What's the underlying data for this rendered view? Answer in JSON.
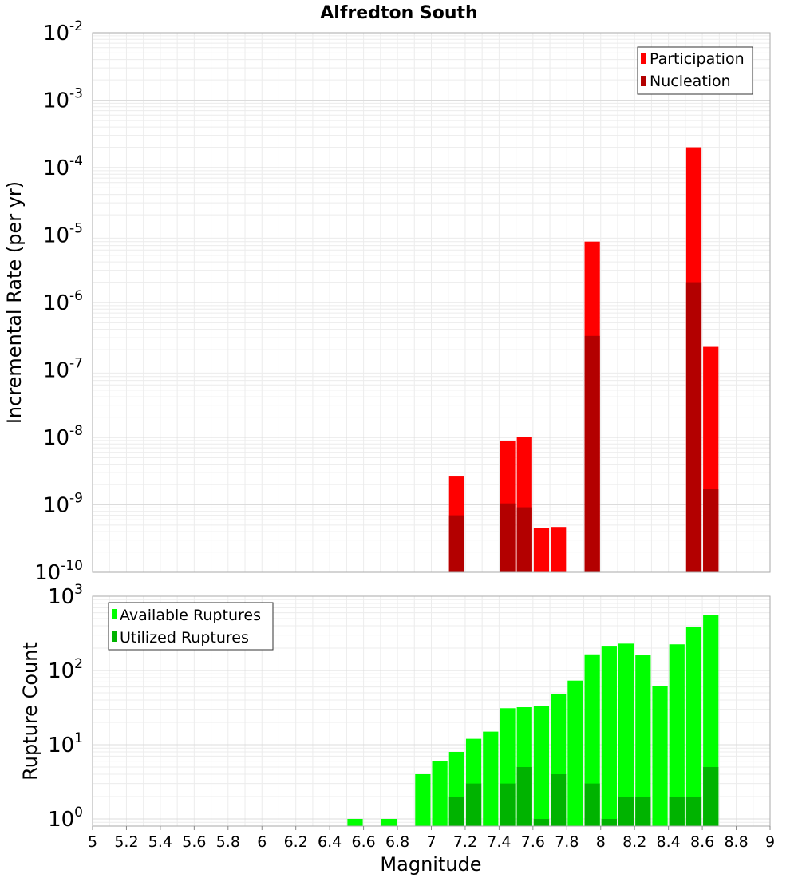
{
  "chart_data": [
    {
      "type": "bar",
      "title": "Alfredton South",
      "ylabel": "Incremental Rate (per yr)",
      "y_scale": "log",
      "ylim": [
        1e-10,
        0.01
      ],
      "y_ticks": [
        {
          "base": "10",
          "exp": "-2"
        },
        {
          "base": "10",
          "exp": "-3"
        },
        {
          "base": "10",
          "exp": "-4"
        },
        {
          "base": "10",
          "exp": "-5"
        },
        {
          "base": "10",
          "exp": "-6"
        },
        {
          "base": "10",
          "exp": "-7"
        },
        {
          "base": "10",
          "exp": "-8"
        },
        {
          "base": "10",
          "exp": "-9"
        },
        {
          "base": "10",
          "exp": "-10"
        }
      ],
      "legend_position": "top-right",
      "series": [
        {
          "name": "Participation",
          "color": "#ff0000",
          "points": [
            {
              "x": 7.1,
              "y": 2.7e-09
            },
            {
              "x": 7.4,
              "y": 8.8e-09
            },
            {
              "x": 7.5,
              "y": 1e-08
            },
            {
              "x": 7.6,
              "y": 4.5e-10
            },
            {
              "x": 7.7,
              "y": 4.7e-10
            },
            {
              "x": 7.9,
              "y": 8e-06
            },
            {
              "x": 8.5,
              "y": 0.0002
            },
            {
              "x": 8.6,
              "y": 2.2e-07
            }
          ]
        },
        {
          "name": "Nucleation",
          "color": "#b30000",
          "points": [
            {
              "x": 7.1,
              "y": 7e-10
            },
            {
              "x": 7.4,
              "y": 1.05e-09
            },
            {
              "x": 7.5,
              "y": 9.2e-10
            },
            {
              "x": 7.9,
              "y": 3.2e-07
            },
            {
              "x": 8.5,
              "y": 2e-06
            },
            {
              "x": 8.6,
              "y": 1.7e-09
            }
          ]
        }
      ]
    },
    {
      "type": "bar",
      "xlabel": "Magnitude",
      "ylabel": "Rupture Count",
      "y_scale": "log",
      "ylim": [
        0.8,
        1000
      ],
      "xlim": [
        5,
        9
      ],
      "x_ticks": [
        "5",
        "5.2",
        "5.4",
        "5.6",
        "5.8",
        "6",
        "6.2",
        "6.4",
        "6.6",
        "6.8",
        "7",
        "7.2",
        "7.4",
        "7.6",
        "7.8",
        "8",
        "8.2",
        "8.4",
        "8.6",
        "8.8",
        "9"
      ],
      "y_ticks": [
        {
          "base": "10",
          "exp": "3"
        },
        {
          "base": "10",
          "exp": "2"
        },
        {
          "base": "10",
          "exp": "1"
        },
        {
          "base": "10",
          "exp": "0"
        }
      ],
      "legend_position": "top-left",
      "series": [
        {
          "name": "Available Ruptures",
          "color": "#00ff00",
          "points": [
            {
              "x": 6.5,
              "y": 1
            },
            {
              "x": 6.7,
              "y": 1
            },
            {
              "x": 6.9,
              "y": 4
            },
            {
              "x": 7.0,
              "y": 6
            },
            {
              "x": 7.1,
              "y": 8
            },
            {
              "x": 7.2,
              "y": 12
            },
            {
              "x": 7.3,
              "y": 15
            },
            {
              "x": 7.4,
              "y": 31
            },
            {
              "x": 7.5,
              "y": 32
            },
            {
              "x": 7.6,
              "y": 33
            },
            {
              "x": 7.7,
              "y": 48
            },
            {
              "x": 7.8,
              "y": 73
            },
            {
              "x": 7.9,
              "y": 165
            },
            {
              "x": 8.0,
              "y": 215
            },
            {
              "x": 8.1,
              "y": 230
            },
            {
              "x": 8.2,
              "y": 160
            },
            {
              "x": 8.3,
              "y": 62
            },
            {
              "x": 8.4,
              "y": 225
            },
            {
              "x": 8.5,
              "y": 390
            },
            {
              "x": 8.6,
              "y": 560
            }
          ]
        },
        {
          "name": "Utilized Ruptures",
          "color": "#00b300",
          "points": [
            {
              "x": 7.1,
              "y": 2
            },
            {
              "x": 7.2,
              "y": 3
            },
            {
              "x": 7.4,
              "y": 3
            },
            {
              "x": 7.5,
              "y": 5
            },
            {
              "x": 7.6,
              "y": 1
            },
            {
              "x": 7.7,
              "y": 4
            },
            {
              "x": 7.9,
              "y": 3
            },
            {
              "x": 8.0,
              "y": 1
            },
            {
              "x": 8.1,
              "y": 2
            },
            {
              "x": 8.2,
              "y": 2
            },
            {
              "x": 8.4,
              "y": 2
            },
            {
              "x": 8.5,
              "y": 2
            },
            {
              "x": 8.6,
              "y": 5
            }
          ]
        }
      ]
    }
  ]
}
